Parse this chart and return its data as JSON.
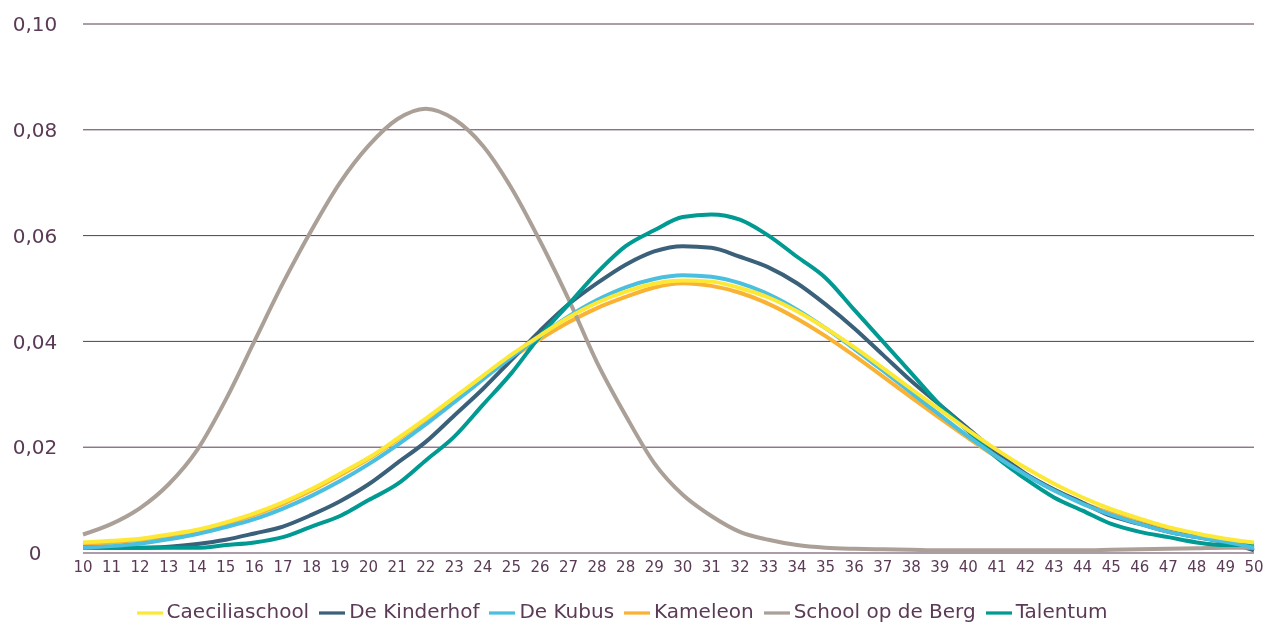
{
  "chart_data": {
    "type": "line",
    "categories": [
      "10",
      "11",
      "12",
      "13",
      "14",
      "15",
      "16",
      "17",
      "18",
      "19",
      "20",
      "21",
      "22",
      "23",
      "24",
      "25",
      "26",
      "27",
      "28",
      "28",
      "29",
      "30",
      "31",
      "32",
      "33",
      "34",
      "35",
      "36",
      "37",
      "38",
      "39",
      "40",
      "41",
      "42",
      "43",
      "44",
      "45",
      "46",
      "47",
      "48",
      "49",
      "50"
    ],
    "ylim": [
      0,
      0.1
    ],
    "yticks": [
      {
        "value": 0,
        "label": "0"
      },
      {
        "value": 0.02,
        "label": "0,02"
      },
      {
        "value": 0.04,
        "label": "0,04"
      },
      {
        "value": 0.06,
        "label": "0,06"
      },
      {
        "value": 0.08,
        "label": "0,08"
      },
      {
        "value": 0.1,
        "label": "0,10"
      }
    ],
    "grid": "y",
    "legend": "bottom",
    "marker": "none",
    "line_style": "solid",
    "series": [
      {
        "name": "Kameleon",
        "color": "#f9b233",
        "values": [
          0.0015,
          0.002,
          0.0025,
          0.0032,
          0.0042,
          0.0055,
          0.0072,
          0.0093,
          0.0118,
          0.0147,
          0.0178,
          0.0214,
          0.0252,
          0.0291,
          0.0331,
          0.0369,
          0.0404,
          0.0436,
          0.0463,
          0.0484,
          0.0502,
          0.051,
          0.0505,
          0.0492,
          0.0471,
          0.0443,
          0.041,
          0.0373,
          0.0334,
          0.0294,
          0.0255,
          0.0217,
          0.0181,
          0.0149,
          0.012,
          0.0095,
          0.0075,
          0.0058,
          0.0044,
          0.0032,
          0.0023,
          0.0015
        ]
      },
      {
        "name": "De Kinderhof",
        "color": "#3b6079",
        "values": [
          0.001,
          0.001,
          0.001,
          0.0012,
          0.0017,
          0.0025,
          0.0037,
          0.005,
          0.0072,
          0.0098,
          0.013,
          0.017,
          0.021,
          0.026,
          0.031,
          0.0365,
          0.042,
          0.047,
          0.051,
          0.0545,
          0.057,
          0.058,
          0.0577,
          0.056,
          0.054,
          0.051,
          0.047,
          0.0425,
          0.0375,
          0.0325,
          0.028,
          0.0235,
          0.019,
          0.015,
          0.012,
          0.0095,
          0.007,
          0.0055,
          0.004,
          0.003,
          0.002,
          0.0005
        ]
      },
      {
        "name": "School op de Berg",
        "color": "#aaa097",
        "values": [
          0.0035,
          0.0055,
          0.0085,
          0.013,
          0.0195,
          0.029,
          0.04,
          0.051,
          0.061,
          0.07,
          0.077,
          0.082,
          0.084,
          0.082,
          0.077,
          0.069,
          0.059,
          0.048,
          0.036,
          0.026,
          0.017,
          0.011,
          0.007,
          0.004,
          0.0025,
          0.0015,
          0.001,
          0.0008,
          0.0007,
          0.0006,
          0.0005,
          0.0005,
          0.0005,
          0.0005,
          0.0005,
          0.0005,
          0.0006,
          0.0007,
          0.0008,
          0.0009,
          0.001,
          0.001
        ]
      },
      {
        "name": "Talentum",
        "color": "#009a93",
        "values": [
          0.001,
          0.001,
          0.001,
          0.001,
          0.001,
          0.0015,
          0.002,
          0.003,
          0.005,
          0.007,
          0.01,
          0.013,
          0.0175,
          0.022,
          0.028,
          0.034,
          0.041,
          0.047,
          0.053,
          0.058,
          0.061,
          0.0635,
          0.064,
          0.063,
          0.06,
          0.056,
          0.052,
          0.046,
          0.04,
          0.034,
          0.028,
          0.023,
          0.018,
          0.014,
          0.0105,
          0.008,
          0.0055,
          0.004,
          0.003,
          0.002,
          0.0015,
          0.0015
        ]
      },
      {
        "name": "De Kubus",
        "color": "#4bbfdf",
        "values": [
          0.001,
          0.0013,
          0.0018,
          0.0026,
          0.0036,
          0.0049,
          0.0064,
          0.0084,
          0.0108,
          0.0136,
          0.0168,
          0.0204,
          0.0243,
          0.0285,
          0.0328,
          0.037,
          0.041,
          0.0447,
          0.0478,
          0.0502,
          0.0518,
          0.0525,
          0.0522,
          0.051,
          0.0489,
          0.046,
          0.0425,
          0.0386,
          0.0345,
          0.0303,
          0.0261,
          0.022,
          0.0182,
          0.0148,
          0.0118,
          0.0093,
          0.0072,
          0.0055,
          0.004,
          0.003,
          0.0021,
          0.001
        ]
      },
      {
        "name": "Caeciliaschool",
        "color": "#fde935",
        "values": [
          0.002,
          0.0023,
          0.0027,
          0.0035,
          0.0044,
          0.0058,
          0.0075,
          0.0096,
          0.0121,
          0.015,
          0.018,
          0.0216,
          0.0254,
          0.0294,
          0.0335,
          0.0375,
          0.0411,
          0.0445,
          0.0473,
          0.0494,
          0.0509,
          0.0515,
          0.0513,
          0.0501,
          0.0483,
          0.0457,
          0.0425,
          0.0389,
          0.035,
          0.031,
          0.0271,
          0.0232,
          0.0195,
          0.0161,
          0.0131,
          0.0105,
          0.0083,
          0.0065,
          0.0049,
          0.0037,
          0.0027,
          0.002
        ]
      }
    ]
  }
}
